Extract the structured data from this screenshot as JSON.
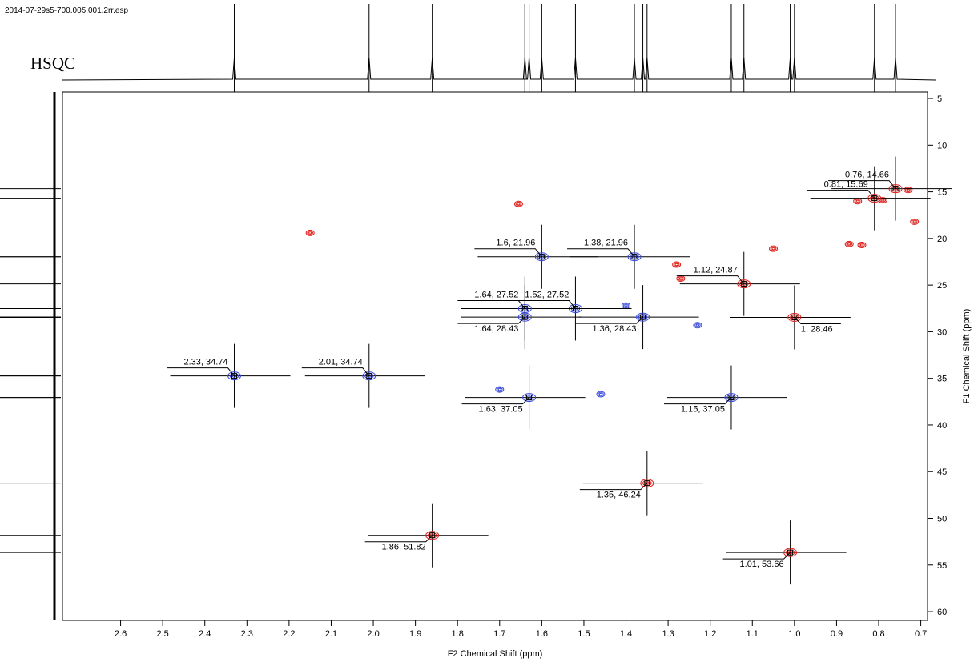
{
  "chart_data": {
    "type": "hsqc",
    "file_name": "2014-07-29s5-700.005.001.2rr.esp",
    "title": "HSQC",
    "x_label": "F2 Chemical Shift (ppm)",
    "y_label": "F1 Chemical Shift (ppm)",
    "xlim": [
      2.738,
      0.684
    ],
    "ylim": [
      4.31,
      60.94
    ],
    "xticks": [
      2.6,
      2.5,
      2.4,
      2.3,
      2.2,
      2.1,
      {
        "value": 2,
        "label": "2.0"
      },
      1.9,
      1.8,
      1.7,
      1.6,
      1.5,
      1.4,
      1.3,
      1.2,
      1.1,
      {
        "value": 1,
        "label": "1.0"
      },
      0.9,
      0.8,
      0.7
    ],
    "yticks": [
      5,
      10,
      15,
      20,
      25,
      30,
      35,
      40,
      45,
      50,
      55,
      60
    ],
    "positive_color": "#e0201b",
    "negative_color": "#3a4bd8",
    "peaks": {
      "x": [
        0.76,
        0.81,
        1.6,
        1.38,
        1.12,
        1.52,
        1.64,
        1.64,
        1.36,
        1,
        2.33,
        2.01,
        1.63,
        1.15,
        1.35,
        1.86,
        1.01
      ],
      "y": [
        14.66,
        15.69,
        21.96,
        21.96,
        24.87,
        27.52,
        27.52,
        28.43,
        28.43,
        28.46,
        34.74,
        34.74,
        37.05,
        37.05,
        46.24,
        51.82,
        53.66
      ],
      "labels": [
        "0.76, 14.66",
        "0.81, 15.69",
        "1.6, 21.96",
        "1.38, 21.96",
        "1.12, 24.87",
        "1.52, 27.52",
        "1.64, 27.52",
        "1.64, 28.43",
        "1.36, 28.43",
        "1, 28.46",
        "2.33, 34.74",
        "2.01, 34.74",
        "1.63, 37.05",
        "1.15, 37.05",
        "1.35, 46.24",
        "1.86, 51.82",
        "1.01, 53.66"
      ],
      "phase": [
        "positive",
        "positive",
        "negative",
        "negative",
        "positive",
        "negative",
        "negative",
        "negative",
        "negative",
        "positive",
        "negative",
        "negative",
        "negative",
        "negative",
        "positive",
        "positive",
        "positive"
      ]
    },
    "contours": {
      "x": [
        1.655,
        2.15,
        1.28,
        1.27,
        1.05,
        0.85,
        0.79,
        0.715,
        0.87,
        0.84,
        1.23,
        1.4,
        1.7,
        1.46,
        0.73
      ],
      "y": [
        16.3,
        19.4,
        22.8,
        24.3,
        21.1,
        16.0,
        15.9,
        18.2,
        20.6,
        20.7,
        29.3,
        27.2,
        36.2,
        36.7,
        14.8
      ],
      "phase": [
        "positive",
        "positive",
        "positive",
        "positive",
        "positive",
        "positive",
        "positive",
        "positive",
        "positive",
        "positive",
        "negative",
        "negative",
        "negative",
        "negative",
        "positive"
      ]
    }
  }
}
